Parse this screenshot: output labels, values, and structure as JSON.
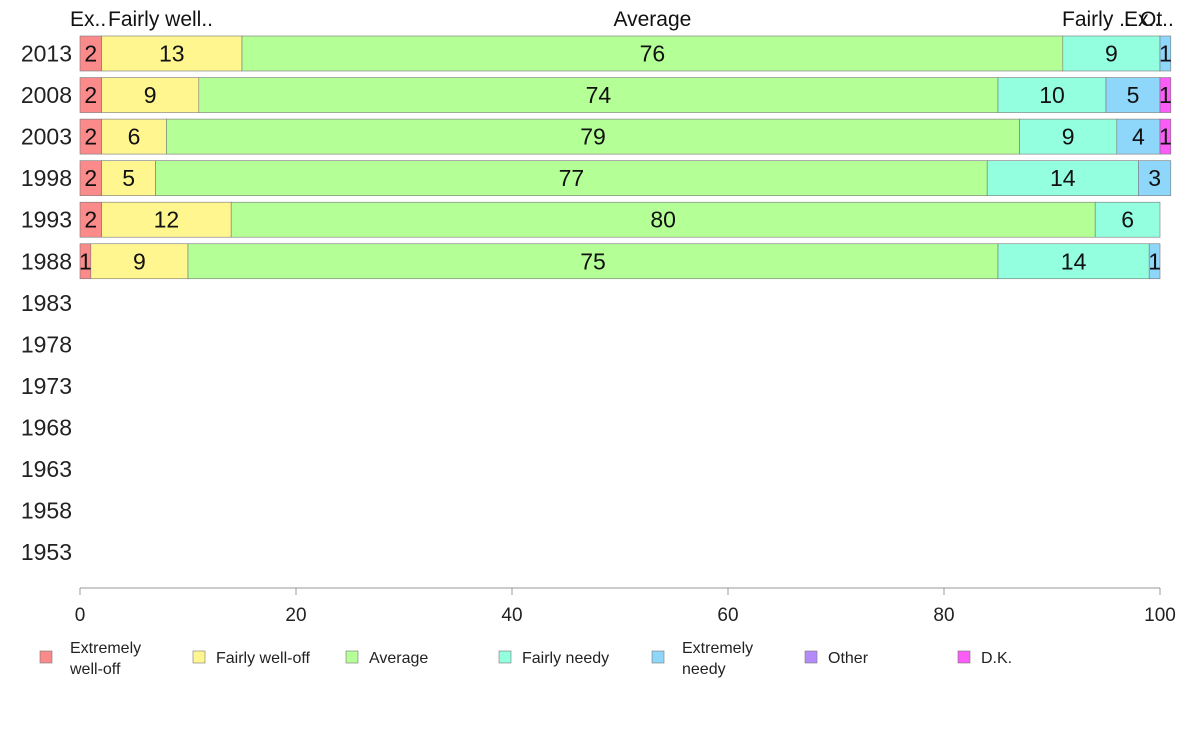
{
  "chart_data": {
    "type": "bar",
    "orientation": "horizontal",
    "stacked": true,
    "categories": [
      "2013",
      "2008",
      "2003",
      "1998",
      "1993",
      "1988",
      "1983",
      "1978",
      "1973",
      "1968",
      "1963",
      "1958",
      "1953"
    ],
    "series": [
      {
        "name": "Extremely well-off",
        "legend_lines": [
          "Extremely",
          "well-off"
        ],
        "color": "#fb8a8a",
        "top_label": "Ex..",
        "values": [
          2,
          2,
          2,
          2,
          2,
          1,
          null,
          null,
          null,
          null,
          null,
          null,
          null
        ],
        "labels": [
          "2",
          "2",
          "2",
          "2",
          "2",
          "1"
        ]
      },
      {
        "name": "Fairly well-off",
        "legend_lines": [
          "Fairly well-off"
        ],
        "color": "#fff68f",
        "top_label": "Fairly well..",
        "values": [
          13,
          9,
          6,
          5,
          12,
          9,
          null,
          null,
          null,
          null,
          null,
          null,
          null
        ],
        "labels": [
          "13",
          "9",
          "6",
          "5",
          "12",
          "9"
        ]
      },
      {
        "name": "Average",
        "legend_lines": [
          "Average"
        ],
        "color": "#b4ff96",
        "top_label": "Average",
        "values": [
          76,
          74,
          79,
          77,
          80,
          75,
          null,
          null,
          null,
          null,
          null,
          null,
          null
        ],
        "labels": [
          "76",
          "74",
          "79",
          "77",
          "80",
          "75"
        ]
      },
      {
        "name": "Fairly needy",
        "legend_lines": [
          "Fairly needy"
        ],
        "color": "#93ffdf",
        "top_label": "Fairly ..",
        "values": [
          9,
          10,
          9,
          14,
          6,
          14,
          null,
          null,
          null,
          null,
          null,
          null,
          null
        ],
        "labels": [
          "9",
          "10",
          "9",
          "14",
          "6",
          "14"
        ]
      },
      {
        "name": "Extremely needy",
        "legend_lines": [
          "Extremely",
          "needy"
        ],
        "color": "#8fd6fb",
        "top_label": "Ex..",
        "values": [
          1,
          5,
          4,
          3,
          0,
          1,
          null,
          null,
          null,
          null,
          null,
          null,
          null
        ],
        "labels": [
          "1",
          "5",
          "4",
          "3",
          "",
          "1"
        ]
      },
      {
        "name": "Other",
        "legend_lines": [
          "Other"
        ],
        "color": "#b38cf9",
        "top_label": "Ot..",
        "values": [
          0,
          0,
          0,
          0,
          0,
          0,
          null,
          null,
          null,
          null,
          null,
          null,
          null
        ],
        "labels": [
          "",
          "",
          "",
          "",
          "",
          ""
        ]
      },
      {
        "name": "D.K.",
        "legend_lines": [
          "D.K."
        ],
        "color": "#fa5cf5",
        "top_label": "",
        "values": [
          0,
          1,
          1,
          0,
          0,
          0,
          null,
          null,
          null,
          null,
          null,
          null,
          null
        ],
        "labels": [
          "",
          "1",
          "1",
          "",
          "",
          ""
        ]
      }
    ],
    "xlim": [
      0,
      100
    ],
    "xticks": [
      "0",
      "20",
      "40",
      "60",
      "80",
      "100"
    ],
    "grid": false,
    "legend_position": "bottom",
    "title": "",
    "xlabel": "",
    "ylabel": ""
  }
}
